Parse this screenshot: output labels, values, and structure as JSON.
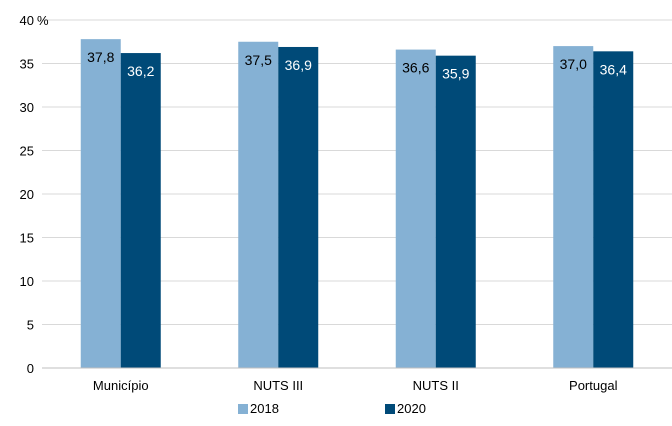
{
  "chart_data": {
    "type": "bar",
    "categories": [
      "Município",
      "NUTS III",
      "NUTS II",
      "Portugal"
    ],
    "series": [
      {
        "name": "2018",
        "values": [
          37.8,
          37.5,
          36.6,
          37.0
        ],
        "labels": [
          "37,8",
          "37,5",
          "36,6",
          "37,0"
        ],
        "color": "#85b1d4",
        "label_color": "#000000"
      },
      {
        "name": "2020",
        "values": [
          36.2,
          36.9,
          35.9,
          36.4
        ],
        "labels": [
          "36,2",
          "36,9",
          "35,9",
          "36,4"
        ],
        "color": "#004a78",
        "label_color": "#ffffff"
      }
    ],
    "yunit": "%",
    "yticks": [
      0,
      5,
      10,
      15,
      20,
      25,
      30,
      35,
      40
    ],
    "ylim": [
      0,
      40
    ],
    "grid": true,
    "legend": "bottom",
    "title": "",
    "xlabel": "",
    "ylabel": ""
  }
}
